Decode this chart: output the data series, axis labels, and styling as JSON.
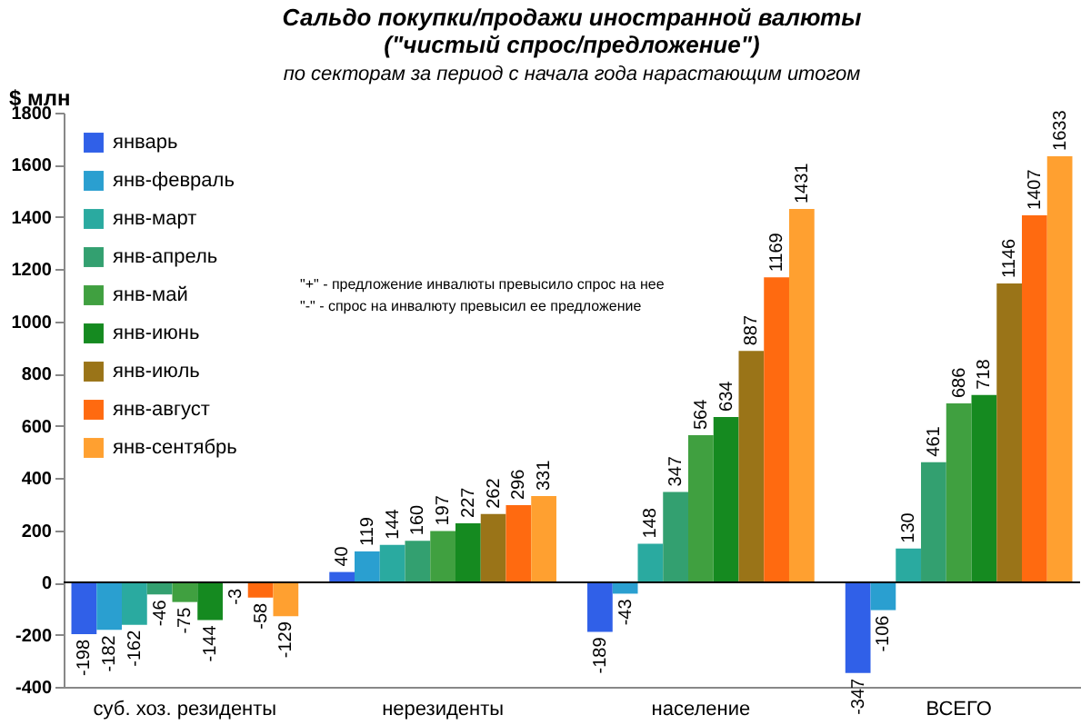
{
  "chart_data": {
    "type": "bar",
    "title": "Сальдо покупки/продажи  иностранной валюты\n(\"чистый спрос/предложение\")",
    "subtitle": "по секторам за период с начала года нарастающим итогом",
    "ylabel": "$ млн",
    "categories": [
      "суб. хоз. резиденты",
      "нерезиденты",
      "население",
      "ВСЕГО"
    ],
    "series": [
      {
        "name": "январь",
        "color": "#3060e8",
        "values": [
          -198,
          40,
          -189,
          -347
        ]
      },
      {
        "name": "янв-февраль",
        "color": "#2a9fd0",
        "values": [
          -182,
          119,
          -43,
          -106
        ]
      },
      {
        "name": "янв-март",
        "color": "#2aaaa0",
        "values": [
          -162,
          144,
          148,
          130
        ]
      },
      {
        "name": "янв-апрель",
        "color": "#33a070",
        "values": [
          -46,
          160,
          347,
          461
        ]
      },
      {
        "name": "янв-май",
        "color": "#40a040",
        "values": [
          -75,
          197,
          564,
          686
        ]
      },
      {
        "name": "янв-июнь",
        "color": "#158a20",
        "values": [
          -144,
          227,
          634,
          718
        ]
      },
      {
        "name": "янв-июль",
        "color": "#9a7418",
        "values": [
          -3,
          262,
          887,
          1146
        ]
      },
      {
        "name": "янв-август",
        "color": "#ff6a10",
        "values": [
          -58,
          296,
          1169,
          1407
        ]
      },
      {
        "name": "янв-сентябрь",
        "color": "#ffa030",
        "values": [
          -129,
          331,
          1431,
          1633
        ]
      }
    ],
    "ylim": [
      -400,
      1800
    ],
    "yticks": [
      -400,
      -200,
      0,
      200,
      400,
      600,
      800,
      1000,
      1200,
      1400,
      1600,
      1800
    ],
    "grid": false,
    "legend": "top left",
    "data_labels": true,
    "ref_lines": [
      {
        "axis": "y",
        "value": 0,
        "color": "#000000"
      }
    ],
    "annotations": [
      "\"+\" - предложение инвалюты превысило спрос на нее",
      "\"-\" - спрос на инвалюту превысил ее предложение"
    ]
  }
}
